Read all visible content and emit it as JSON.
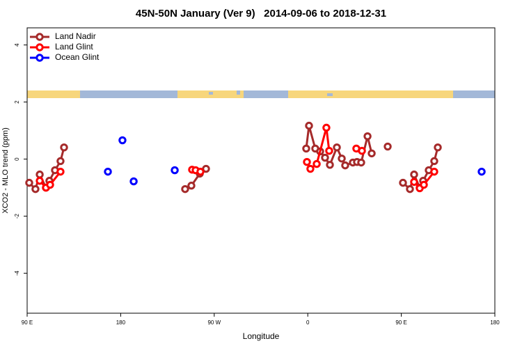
{
  "chart_data": {
    "type": "line",
    "title": "45N-50N January (Ver 9)   2014-09-06 to 2018-12-31",
    "xlabel": "Longitude",
    "ylabel": "XCO2 - MLO trend (ppm)",
    "xlim": [
      90,
      540
    ],
    "ylim": [
      -5.4,
      4.6
    ],
    "xticks": [
      {
        "value": 90,
        "label": "90 E"
      },
      {
        "value": 180,
        "label": "180"
      },
      {
        "value": 270,
        "label": "90 W"
      },
      {
        "value": 360,
        "label": "0"
      },
      {
        "value": 450,
        "label": "90 E"
      },
      {
        "value": 540,
        "label": "180"
      }
    ],
    "yticks": [
      -4,
      -2,
      0,
      2,
      4
    ],
    "legend": "top-left",
    "series": [
      {
        "name": "Land Nadir",
        "color": "#a52a2a",
        "x": [
          92.0,
          98.0,
          102.1,
          108.1,
          111.4,
          116.8,
          122.1,
          125.5,
          null,
          242.0,
          248.0,
          256.1,
          262.1,
          null,
          358.5,
          361.2,
          367.2,
          371.9,
          376.6,
          381.3,
          388.0,
          392.7,
          396.0,
          403.4,
          407.4,
          411.4,
          417.5,
          421.5,
          null,
          436.9,
          null,
          451.6,
          458.3,
          462.3,
          467.7,
          471.0,
          476.4,
          481.7,
          485.1
        ],
        "values": [
          -0.83,
          -1.05,
          -0.54,
          -1.0,
          -0.76,
          -0.39,
          -0.07,
          0.41,
          null,
          -1.05,
          -0.93,
          -0.51,
          -0.34,
          null,
          0.37,
          1.17,
          0.37,
          0.27,
          0.05,
          -0.2,
          0.41,
          0.02,
          -0.22,
          -0.12,
          -0.1,
          -0.12,
          0.8,
          0.2,
          null,
          0.44,
          null,
          -0.83,
          -1.05,
          -0.54,
          -1.0,
          -0.76,
          -0.39,
          -0.07,
          0.41
        ]
      },
      {
        "name": "Land Glint",
        "color": "#ff0000",
        "x": [
          102.1,
          108.1,
          112.1,
          122.1,
          null,
          248.7,
          252.1,
          256.7,
          null,
          359.2,
          362.5,
          368.6,
          377.9,
          380.6,
          null,
          406.7,
          412.1,
          null,
          462.3,
          467.7,
          471.7,
          481.7
        ],
        "values": [
          -0.76,
          -1.0,
          -0.9,
          -0.44,
          null,
          -0.37,
          -0.39,
          -0.44,
          null,
          -0.1,
          -0.34,
          -0.17,
          1.1,
          0.29,
          null,
          0.37,
          0.29,
          null,
          -0.8,
          -1.02,
          -0.9,
          -0.44
        ]
      },
      {
        "name": "Ocean Glint",
        "color": "#0000ff",
        "x": [
          167.7,
          null,
          181.7,
          null,
          192.5,
          null,
          232.0,
          null,
          527.3
        ],
        "values": [
          -0.44,
          null,
          0.66,
          null,
          -0.78,
          null,
          -0.39,
          null,
          -0.44
        ]
      }
    ]
  }
}
